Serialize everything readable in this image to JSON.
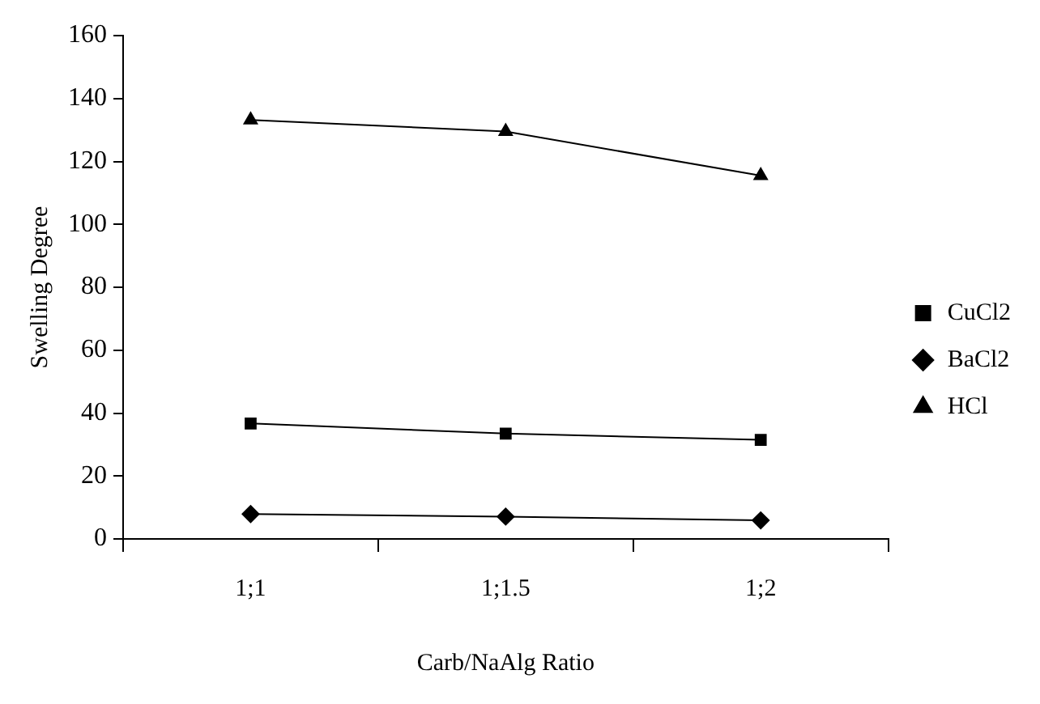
{
  "chart_data": {
    "type": "line",
    "xlabel": "Carb/NaAlg Ratio",
    "ylabel": "Swelling Degree",
    "categories": [
      "1;1",
      "1;1.5",
      "1;2"
    ],
    "series": [
      {
        "name": "CuCl2",
        "color": "#000000",
        "marker": "square",
        "values": [
          36.7,
          33.5,
          31.5
        ]
      },
      {
        "name": "BaCl2",
        "color": "#000000",
        "marker": "diamond",
        "values": [
          7.9,
          7.1,
          5.9
        ]
      },
      {
        "name": "HCl",
        "color": "#000000",
        "marker": "triangle",
        "values": [
          133.2,
          129.5,
          115.5
        ]
      }
    ],
    "ylim": [
      0,
      160
    ],
    "yticks": [
      0,
      20,
      40,
      60,
      80,
      100,
      120,
      140,
      160
    ],
    "grid": false,
    "legend": "right",
    "line_style": "solid"
  }
}
